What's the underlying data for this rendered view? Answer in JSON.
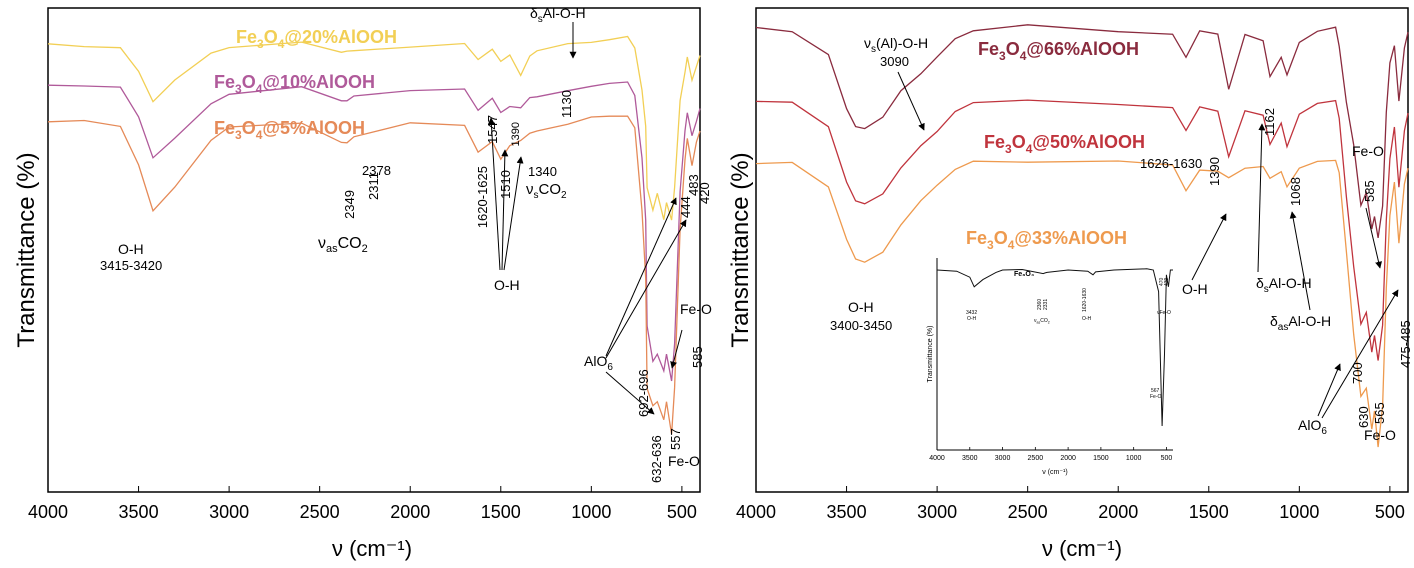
{
  "chart_data": [
    {
      "type": "line",
      "xlabel": "ν (cm⁻¹)",
      "ylabel": "Transmittance (%)",
      "xlim": [
        4000,
        400
      ],
      "x_ticks": [
        "4000",
        "3500",
        "3000",
        "2500",
        "2000",
        "1500",
        "1000",
        "500"
      ],
      "grid": false,
      "legend": "inline labels",
      "series": [
        {
          "name": "Fe3O4@20%AlOOH",
          "color": "#f2cf55",
          "x": [
            4000,
            3800,
            3600,
            3500,
            3420,
            3300,
            3100,
            3000,
            2600,
            2380,
            2349,
            2311,
            2000,
            1700,
            1625,
            1547,
            1500,
            1450,
            1390,
            1340,
            1300,
            1130,
            1000,
            900,
            800,
            760,
            720,
            700,
            692,
            660,
            636,
            600,
            585,
            557,
            540,
            510,
            483,
            470,
            444,
            420,
            400
          ],
          "y": [
            90.5,
            90.3,
            89.5,
            84.0,
            77.5,
            82.0,
            88.5,
            90.0,
            90.3,
            88.0,
            88.2,
            88.5,
            90.2,
            90.0,
            87.5,
            88.8,
            86.0,
            87.5,
            84.0,
            88.0,
            89.0,
            90.5,
            91.0,
            91.2,
            91.5,
            90.0,
            80.0,
            72.0,
            60.0,
            55.0,
            58.0,
            52.0,
            56.0,
            53.0,
            60.0,
            78.0,
            84.0,
            88.0,
            82.0,
            86.0,
            88.0
          ]
        },
        {
          "name": "Fe3O4@10%AlOOH",
          "color": "#b05a9a",
          "x": [
            4000,
            3800,
            3600,
            3500,
            3420,
            3300,
            3100,
            3000,
            2600,
            2380,
            2349,
            2311,
            2000,
            1700,
            1625,
            1547,
            1500,
            1450,
            1390,
            1340,
            1300,
            1130,
            1000,
            900,
            800,
            760,
            720,
            700,
            692,
            660,
            636,
            600,
            585,
            557,
            540,
            510,
            483,
            470,
            444,
            420,
            400
          ],
          "y": [
            82.0,
            81.5,
            80.5,
            74.0,
            66.0,
            70.0,
            78.0,
            80.0,
            80.5,
            77.5,
            78.0,
            78.5,
            80.5,
            80.0,
            76.5,
            78.0,
            75.5,
            77.0,
            76.5,
            78.5,
            79.5,
            80.8,
            81.0,
            81.3,
            81.5,
            79.5,
            66.0,
            52.0,
            30.0,
            22.0,
            24.0,
            20.0,
            24.0,
            18.0,
            26.0,
            58.0,
            72.0,
            76.0,
            70.0,
            74.0,
            77.0
          ]
        },
        {
          "name": "Fe3O4@5%AlOOH",
          "color": "#e58a58",
          "x": [
            4000,
            3800,
            3600,
            3500,
            3420,
            3300,
            3100,
            3000,
            2600,
            2380,
            2349,
            2311,
            2000,
            1700,
            1625,
            1547,
            1500,
            1450,
            1390,
            1340,
            1300,
            1130,
            1000,
            900,
            800,
            760,
            720,
            700,
            692,
            660,
            636,
            600,
            585,
            557,
            540,
            510,
            483,
            470,
            444,
            420,
            400
          ],
          "y": [
            74.0,
            73.5,
            72.0,
            64.0,
            55.0,
            60.0,
            70.0,
            72.5,
            73.0,
            69.0,
            69.5,
            70.0,
            73.0,
            72.5,
            67.0,
            69.0,
            66.0,
            69.0,
            69.0,
            70.5,
            72.0,
            73.5,
            74.0,
            74.2,
            74.5,
            72.0,
            55.0,
            40.0,
            16.0,
            12.0,
            14.0,
            10.0,
            14.0,
            6.0,
            16.0,
            50.0,
            66.0,
            70.0,
            64.0,
            69.0,
            72.0
          ]
        }
      ],
      "annotations": [
        "O-H",
        "3415-3420",
        "2378",
        "2349",
        "2311",
        "CO",
        "1620-1625",
        "1547",
        "1510",
        "1390",
        "1340",
        "O-H",
        "δ",
        "Al-O-H",
        "1130",
        "AlO",
        "692-696",
        "632-636",
        "557",
        "Fe-O",
        "483",
        "444",
        "420",
        "Fe-O",
        "585"
      ]
    },
    {
      "type": "line",
      "xlabel": "ν (cm⁻¹)",
      "ylabel": "Transmittance (%)",
      "xlim": [
        4000,
        400
      ],
      "x_ticks": [
        "4000",
        "3500",
        "3000",
        "2500",
        "2000",
        "1500",
        "1000",
        "500"
      ],
      "grid": false,
      "legend": "inline labels",
      "series": [
        {
          "name": "Fe3O4@66%AlOOH",
          "color": "#8a2b3e",
          "x": [
            4000,
            3800,
            3600,
            3500,
            3450,
            3400,
            3300,
            3200,
            3090,
            3000,
            2900,
            2800,
            2500,
            2000,
            1700,
            1626,
            1550,
            1450,
            1390,
            1300,
            1200,
            1162,
            1100,
            1068,
            1000,
            900,
            800,
            780,
            740,
            700,
            660,
            630,
            600,
            585,
            565,
            540,
            520,
            500,
            475,
            450,
            420,
            400
          ],
          "y": [
            96.0,
            95.5,
            90.0,
            78.0,
            74.0,
            73.5,
            76.0,
            82.0,
            86.0,
            90.0,
            94.0,
            95.5,
            95.8,
            95.5,
            94.0,
            90.0,
            94.5,
            94.0,
            83.0,
            94.5,
            93.5,
            85.0,
            90.0,
            86.0,
            93.0,
            95.0,
            95.5,
            92.0,
            80.0,
            70.0,
            58.0,
            60.0,
            52.0,
            55.0,
            50.0,
            58.0,
            78.0,
            88.0,
            92.0,
            80.0,
            92.0,
            95.0
          ]
        },
        {
          "name": "Fe3O4@50%AlOOH",
          "color": "#c0343d",
          "x": [
            4000,
            3800,
            3600,
            3500,
            3450,
            3400,
            3300,
            3200,
            3090,
            3000,
            2900,
            2800,
            2500,
            2000,
            1700,
            1626,
            1550,
            1450,
            1390,
            1300,
            1200,
            1162,
            1100,
            1068,
            1000,
            900,
            800,
            780,
            740,
            700,
            660,
            630,
            600,
            585,
            565,
            540,
            520,
            500,
            475,
            450,
            420,
            400
          ],
          "y": [
            80.5,
            80.0,
            74.0,
            62.0,
            58.0,
            57.5,
            60.0,
            66.0,
            70.0,
            74.0,
            78.0,
            79.5,
            79.8,
            79.5,
            78.0,
            74.0,
            78.5,
            78.0,
            68.0,
            78.5,
            77.5,
            71.0,
            75.5,
            70.0,
            77.0,
            79.0,
            79.5,
            76.0,
            60.0,
            44.0,
            32.0,
            34.0,
            26.0,
            30.0,
            24.0,
            32.0,
            55.0,
            68.0,
            74.0,
            62.0,
            74.0,
            78.0
          ]
        },
        {
          "name": "Fe3O4@33%AlOOH",
          "color": "#ee9a4e",
          "x": [
            4000,
            3800,
            3600,
            3500,
            3450,
            3400,
            3300,
            3200,
            3090,
            3000,
            2900,
            2800,
            2500,
            2000,
            1700,
            1626,
            1550,
            1450,
            1390,
            1300,
            1200,
            1162,
            1100,
            1068,
            1000,
            900,
            800,
            780,
            740,
            700,
            660,
            630,
            600,
            585,
            565,
            540,
            520,
            500,
            475,
            450,
            420,
            400
          ],
          "y": [
            67.0,
            66.5,
            61.0,
            50.0,
            46.0,
            45.5,
            48.0,
            54.0,
            58.0,
            62.0,
            65.0,
            66.5,
            67.0,
            66.8,
            66.0,
            60.5,
            65.5,
            65.5,
            63.0,
            66.0,
            66.0,
            64.0,
            64.5,
            61.0,
            65.0,
            66.5,
            67.0,
            64.0,
            48.0,
            30.0,
            16.0,
            18.0,
            10.0,
            14.0,
            6.0,
            14.0,
            40.0,
            56.0,
            62.0,
            50.0,
            62.0,
            66.0
          ]
        }
      ],
      "annotations": [
        "ν",
        "(Al)-O-H",
        "3090",
        "O-H",
        "3400-3450",
        "1626-1630",
        "O-H",
        "1390",
        "1162",
        "δ",
        "Al-O-H",
        "1068",
        "δ",
        "Al-O-H",
        "Fe-O",
        "585",
        "700",
        "475-485",
        "AlO",
        "630",
        "565",
        "Fe-O"
      ],
      "inset": {
        "label": "Fe₃O₄",
        "ylabel": "Transmittance (%)",
        "xlabel": "ν (cm⁻¹)",
        "x_ticks": [
          "4000",
          "3500",
          "3000",
          "2500",
          "2000",
          "1500",
          "1000",
          "500"
        ],
        "x": [
          4000,
          3700,
          3500,
          3432,
          3300,
          3100,
          3000,
          2700,
          2380,
          2350,
          2320,
          2000,
          1700,
          1620,
          1580,
          1300,
          1000,
          800,
          700,
          620,
          567,
          530,
          500,
          470,
          440,
          400
        ],
        "y": [
          95,
          94.5,
          92,
          88,
          91,
          94,
          95,
          95.2,
          93.5,
          93.8,
          94,
          95,
          94.5,
          93,
          94.2,
          95,
          95.3,
          95.5,
          95,
          86,
          30,
          60,
          93,
          88,
          95,
          95
        ],
        "annotations": [
          "3432",
          "O-H",
          "2360",
          "2331",
          "CO",
          "1620-1630",
          "O-H",
          "567",
          "Fe-O",
          "470",
          "439",
          "ν",
          "Fe-O"
        ]
      }
    }
  ]
}
